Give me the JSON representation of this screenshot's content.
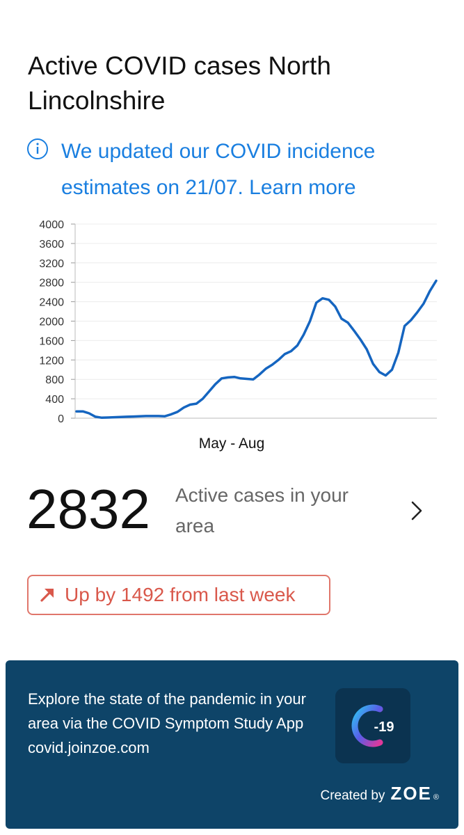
{
  "header": {
    "title": "Active COVID cases North Lincolnshire"
  },
  "notice": {
    "text": "We updated our COVID incidence estimates on 21/07. Learn more",
    "icon": "info-icon",
    "color": "#1a7fe0"
  },
  "chart_data": {
    "type": "line",
    "title": "",
    "xlabel": "May - Aug",
    "ylabel": "",
    "ylim": [
      0,
      4000
    ],
    "y_ticks": [
      0,
      400,
      800,
      1200,
      1600,
      2000,
      2400,
      2800,
      3200,
      3600,
      4000
    ],
    "grid": true,
    "color": "#1565c0",
    "series": [
      {
        "values": [
          140,
          140,
          100,
          30,
          10,
          15,
          20,
          25,
          30,
          35,
          40,
          45,
          45,
          45,
          40,
          80,
          130,
          220,
          280,
          300,
          400,
          550,
          700,
          820,
          840,
          850,
          820,
          810,
          800,
          900,
          1020,
          1100,
          1200,
          1320,
          1380,
          1500,
          1720,
          2000,
          2380,
          2470,
          2440,
          2300,
          2050,
          1970,
          1800,
          1620,
          1420,
          1120,
          950,
          880,
          1000,
          1350,
          1900,
          2020,
          2180,
          2360,
          2620,
          2832
        ]
      }
    ]
  },
  "summary": {
    "value": "2832",
    "label": "Active cases in your area"
  },
  "trend": {
    "text": "Up by 1492 from last week",
    "icon": "arrow-up-right-icon",
    "color": "#d9584b"
  },
  "promo": {
    "text": "Explore the state of the pandemic in your area via the COVID Symptom Study App covid.joinzoe.com",
    "app_icon_label": "-19",
    "created_by": "Created by",
    "brand": "ZOE",
    "reg": "®",
    "background": "#0e4468"
  }
}
